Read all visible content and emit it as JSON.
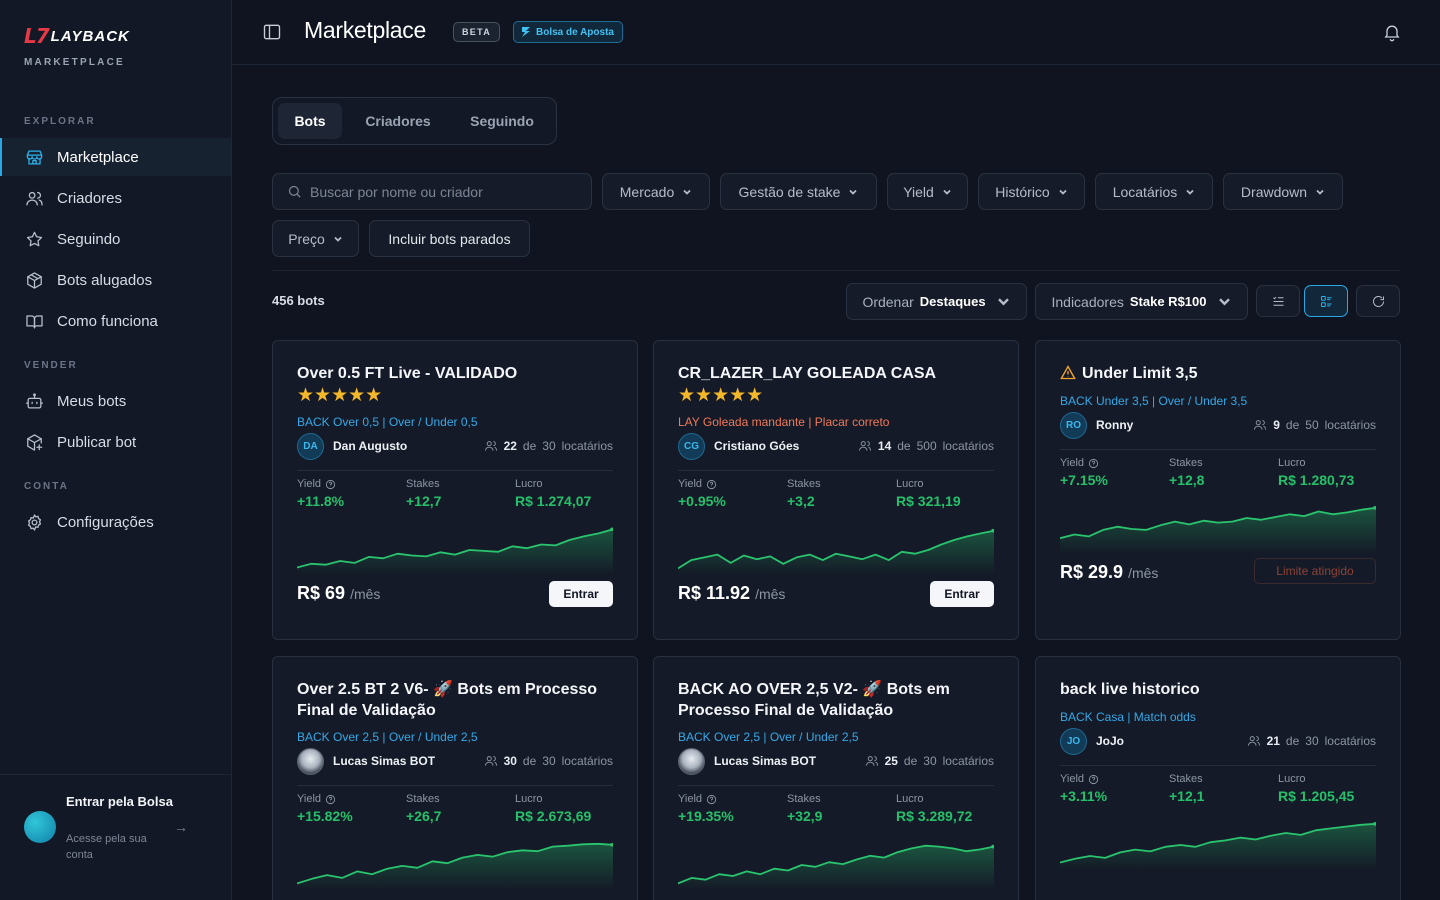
{
  "brand": {
    "logo_mark": "L7",
    "logo_text": "LAYBACK",
    "subtitle": "MARKETPLACE"
  },
  "sidebar": {
    "sections": [
      {
        "label": "EXPLORAR",
        "items": [
          "Marketplace",
          "Criadores",
          "Seguindo",
          "Bots alugados",
          "Como funciona"
        ]
      },
      {
        "label": "VENDER",
        "items": [
          "Meus bots",
          "Publicar bot"
        ]
      },
      {
        "label": "CONTA",
        "items": [
          "Configurações"
        ]
      }
    ],
    "login": {
      "title": "Entrar pela Bolsa",
      "subtitle": "Acesse pela sua conta",
      "arrow": "→"
    }
  },
  "header": {
    "title": "Marketplace",
    "beta": "BETA",
    "bolsa": "Bolsa de Aposta"
  },
  "tabs": [
    "Bots",
    "Criadores",
    "Seguindo"
  ],
  "filters": {
    "search_placeholder": "Buscar por nome ou criador",
    "items": [
      "Mercado",
      "Gestão de stake",
      "Yield",
      "Histórico",
      "Locatários",
      "Drawdown",
      "Preço"
    ],
    "include_stopped": "Incluir bots parados"
  },
  "results": {
    "count": "456 bots",
    "order_label": "Ordenar",
    "order_value": "Destaques",
    "indicators_label": "Indicadores",
    "indicators_value": "Stake R$100"
  },
  "labels": {
    "yield": "Yield",
    "stakes": "Stakes",
    "lucro": "Lucro",
    "de": "de",
    "locatarios": "locatários",
    "per_month": "/mês",
    "enter": "Entrar",
    "limit": "Limite atingido"
  },
  "cards": [
    {
      "title": "Over 0.5 FT Live - VALIDADO",
      "stars": "★★★★★",
      "tags": "BACK Over 0,5 | Over / Under 0,5",
      "tag_color": "blue",
      "avatar": "DA",
      "creator": "Dan Augusto",
      "rented": "22",
      "capacity": "30",
      "yield": "+11.8%",
      "stakes": "+12,7",
      "lucro": "R$ 1.274,07",
      "price": "R$ 69",
      "action": "enter",
      "spark": [
        0.12,
        0.2,
        0.18,
        0.26,
        0.22,
        0.35,
        0.32,
        0.42,
        0.38,
        0.36,
        0.45,
        0.4,
        0.5,
        0.48,
        0.46,
        0.58,
        0.54,
        0.62,
        0.6,
        0.72,
        0.8,
        0.86,
        0.95
      ]
    },
    {
      "title": "CR_LAZER_LAY GOLEADA CASA",
      "stars": "★★★★★",
      "tags": "LAY Goleada mandante | Placar correto",
      "tag_color": "red",
      "avatar": "CG",
      "creator": "Cristiano Góes",
      "rented": "14",
      "capacity": "500",
      "yield": "+0.95%",
      "stakes": "+3,2",
      "lucro": "R$ 321,19",
      "price": "R$ 11.92",
      "action": "enter",
      "spark": [
        0.1,
        0.28,
        0.34,
        0.4,
        0.22,
        0.38,
        0.3,
        0.36,
        0.2,
        0.34,
        0.4,
        0.28,
        0.42,
        0.36,
        0.3,
        0.4,
        0.28,
        0.46,
        0.42,
        0.5,
        0.62,
        0.72,
        0.8,
        0.86,
        0.92
      ]
    },
    {
      "title": "Under Limit 3,5",
      "warn": true,
      "tags": "BACK Under 3,5 | Over / Under 3,5",
      "tag_color": "blue",
      "avatar": "RO",
      "creator": "Ronny",
      "rented": "9",
      "capacity": "50",
      "yield": "+7.15%",
      "stakes": "+12,8",
      "lucro": "R$ 1.280,73",
      "price": "R$ 29.9",
      "action": "limit",
      "spark": [
        0.3,
        0.38,
        0.34,
        0.48,
        0.55,
        0.5,
        0.48,
        0.58,
        0.66,
        0.6,
        0.68,
        0.64,
        0.66,
        0.74,
        0.7,
        0.76,
        0.82,
        0.78,
        0.88,
        0.82,
        0.86,
        0.92,
        0.96
      ]
    },
    {
      "title": "Over 2.5 BT 2 V6- 🚀 Bots em Processo Final de Validação",
      "tags": "BACK Over 2,5 | Over / Under 2,5",
      "tag_color": "blue",
      "avatar": "img",
      "creator": "Lucas Simas BOT",
      "rented": "30",
      "capacity": "30",
      "yield": "+15.82%",
      "stakes": "+26,7",
      "lucro": "R$ 2.673,69",
      "price": "",
      "action": "none",
      "spark": [
        0.1,
        0.2,
        0.28,
        0.22,
        0.36,
        0.3,
        0.42,
        0.48,
        0.44,
        0.58,
        0.54,
        0.66,
        0.72,
        0.68,
        0.78,
        0.82,
        0.8,
        0.9,
        0.92,
        0.95,
        0.96,
        0.94
      ]
    },
    {
      "title": "BACK AO OVER 2,5 V2- 🚀 Bots em Processo Final de Validação",
      "tags": "BACK Over 2,5 | Over / Under 2,5",
      "tag_color": "blue",
      "avatar": "img",
      "creator": "Lucas Simas BOT",
      "rented": "25",
      "capacity": "30",
      "yield": "+19.35%",
      "stakes": "+32,9",
      "lucro": "R$ 3.289,72",
      "price": "",
      "action": "none",
      "spark": [
        0.1,
        0.22,
        0.18,
        0.3,
        0.26,
        0.36,
        0.3,
        0.42,
        0.38,
        0.5,
        0.46,
        0.56,
        0.52,
        0.62,
        0.7,
        0.66,
        0.78,
        0.86,
        0.92,
        0.9,
        0.86,
        0.8,
        0.84,
        0.9
      ]
    },
    {
      "title": "back live historico",
      "tags": "BACK Casa | Match odds",
      "tag_color": "blue",
      "avatar": "JO",
      "creator": "JoJo",
      "rented": "21",
      "capacity": "30",
      "yield": "+3.11%",
      "stakes": "+12,1",
      "lucro": "R$ 1.205,45",
      "price": "",
      "action": "none",
      "spark": [
        0.12,
        0.2,
        0.26,
        0.22,
        0.34,
        0.4,
        0.36,
        0.46,
        0.5,
        0.46,
        0.56,
        0.6,
        0.66,
        0.62,
        0.7,
        0.76,
        0.72,
        0.82,
        0.86,
        0.9,
        0.94,
        0.96
      ]
    }
  ],
  "colors": {
    "accent": "#2aa8e6",
    "positive": "#27c06a",
    "star": "#f3b72a",
    "warning": "#f07a58"
  }
}
